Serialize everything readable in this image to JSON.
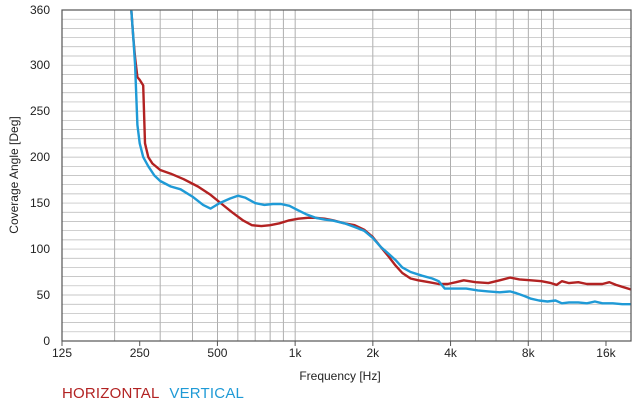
{
  "chart_data": {
    "type": "line",
    "title": "",
    "xlabel": "Frequency [Hz]",
    "ylabel": "Coverage Angle [Deg]",
    "x_scale": "log",
    "xlim": [
      125,
      20000
    ],
    "ylim": [
      0,
      360
    ],
    "grid": true,
    "legend_position": "bottom-left",
    "x_ticks": [
      {
        "value": 125,
        "label": "125"
      },
      {
        "value": 250,
        "label": "250"
      },
      {
        "value": 500,
        "label": "500"
      },
      {
        "value": 1000,
        "label": "1k"
      },
      {
        "value": 2000,
        "label": "2k"
      },
      {
        "value": 4000,
        "label": "4k"
      },
      {
        "value": 8000,
        "label": "8k"
      },
      {
        "value": 16000,
        "label": "16k"
      }
    ],
    "y_ticks": [
      {
        "value": 0,
        "label": "0"
      },
      {
        "value": 50,
        "label": "50"
      },
      {
        "value": 100,
        "label": "100"
      },
      {
        "value": 150,
        "label": "150"
      },
      {
        "value": 200,
        "label": "200"
      },
      {
        "value": 250,
        "label": "250"
      },
      {
        "value": 300,
        "label": "300"
      },
      {
        "value": 360,
        "label": "360"
      }
    ],
    "series": [
      {
        "name": "HORIZONTAL",
        "color": "#b22222",
        "points": [
          [
            232,
            360
          ],
          [
            236,
            330
          ],
          [
            240,
            308
          ],
          [
            245,
            287
          ],
          [
            250,
            284
          ],
          [
            258,
            278
          ],
          [
            262,
            215
          ],
          [
            270,
            200
          ],
          [
            280,
            193
          ],
          [
            300,
            186
          ],
          [
            330,
            182
          ],
          [
            370,
            176
          ],
          [
            420,
            168
          ],
          [
            470,
            159
          ],
          [
            520,
            149
          ],
          [
            570,
            140
          ],
          [
            630,
            131
          ],
          [
            680,
            126
          ],
          [
            740,
            125
          ],
          [
            800,
            126
          ],
          [
            870,
            128
          ],
          [
            940,
            131
          ],
          [
            1030,
            133
          ],
          [
            1120,
            134
          ],
          [
            1200,
            134
          ],
          [
            1300,
            133
          ],
          [
            1420,
            131
          ],
          [
            1550,
            128
          ],
          [
            1700,
            126
          ],
          [
            1850,
            121
          ],
          [
            2000,
            113
          ],
          [
            2150,
            102
          ],
          [
            2300,
            92
          ],
          [
            2450,
            82
          ],
          [
            2600,
            74
          ],
          [
            2800,
            68
          ],
          [
            3000,
            66
          ],
          [
            3300,
            64
          ],
          [
            3600,
            62
          ],
          [
            3900,
            62
          ],
          [
            4200,
            64
          ],
          [
            4500,
            66
          ],
          [
            5000,
            64
          ],
          [
            5600,
            63
          ],
          [
            6200,
            66
          ],
          [
            6800,
            69
          ],
          [
            7400,
            67
          ],
          [
            8200,
            66
          ],
          [
            9000,
            65
          ],
          [
            9800,
            63
          ],
          [
            10300,
            61
          ],
          [
            10800,
            65
          ],
          [
            11500,
            63
          ],
          [
            12500,
            64
          ],
          [
            13500,
            62
          ],
          [
            14500,
            62
          ],
          [
            15500,
            62
          ],
          [
            16500,
            64
          ],
          [
            17500,
            61
          ],
          [
            18500,
            59
          ],
          [
            20000,
            56
          ]
        ]
      },
      {
        "name": "VERTICAL",
        "color": "#1f9ad6",
        "points": [
          [
            232,
            360
          ],
          [
            236,
            330
          ],
          [
            240,
            300
          ],
          [
            245,
            235
          ],
          [
            250,
            215
          ],
          [
            258,
            200
          ],
          [
            270,
            190
          ],
          [
            285,
            180
          ],
          [
            300,
            174
          ],
          [
            330,
            168
          ],
          [
            360,
            165
          ],
          [
            400,
            157
          ],
          [
            440,
            148
          ],
          [
            470,
            144
          ],
          [
            510,
            150
          ],
          [
            560,
            155
          ],
          [
            600,
            158
          ],
          [
            640,
            156
          ],
          [
            700,
            150
          ],
          [
            760,
            148
          ],
          [
            820,
            149
          ],
          [
            880,
            149
          ],
          [
            950,
            147
          ],
          [
            1030,
            142
          ],
          [
            1100,
            138
          ],
          [
            1200,
            134
          ],
          [
            1300,
            132
          ],
          [
            1400,
            131
          ],
          [
            1550,
            128
          ],
          [
            1700,
            124
          ],
          [
            1850,
            120
          ],
          [
            2000,
            112
          ],
          [
            2150,
            102
          ],
          [
            2300,
            95
          ],
          [
            2450,
            88
          ],
          [
            2600,
            80
          ],
          [
            2800,
            75
          ],
          [
            3100,
            71
          ],
          [
            3400,
            68
          ],
          [
            3600,
            65
          ],
          [
            3800,
            57
          ],
          [
            4200,
            57
          ],
          [
            4600,
            57
          ],
          [
            5100,
            55
          ],
          [
            5600,
            54
          ],
          [
            6200,
            53
          ],
          [
            6800,
            54
          ],
          [
            7200,
            52
          ],
          [
            7700,
            49
          ],
          [
            8200,
            46
          ],
          [
            8800,
            44
          ],
          [
            9500,
            43
          ],
          [
            10200,
            44
          ],
          [
            10800,
            41
          ],
          [
            11500,
            42
          ],
          [
            12500,
            42
          ],
          [
            13500,
            41
          ],
          [
            14500,
            43
          ],
          [
            15500,
            41
          ],
          [
            17000,
            41
          ],
          [
            18500,
            40
          ],
          [
            20000,
            40
          ]
        ]
      }
    ]
  }
}
